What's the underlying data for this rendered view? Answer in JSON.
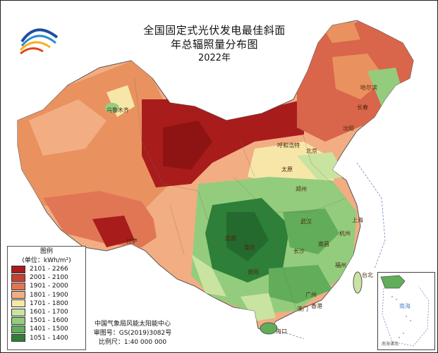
{
  "title": {
    "line1": "全国固定式光伏发电最佳斜面",
    "line2": "年总辐照量分布图",
    "year": "2022年"
  },
  "legend": {
    "title": "图例",
    "unit": "(单位：kWh/m²)",
    "items": [
      {
        "label": "2101 - 2266",
        "color": "#a91c1c"
      },
      {
        "label": "2001 - 2100",
        "color": "#c8402e"
      },
      {
        "label": "1901 - 2000",
        "color": "#e17655"
      },
      {
        "label": "1801 - 1900",
        "color": "#f3ad83"
      },
      {
        "label": "1701 - 1800",
        "color": "#f6e7a8"
      },
      {
        "label": "1601 - 1700",
        "color": "#c9e3a0"
      },
      {
        "label": "1501 - 1600",
        "color": "#94cc7d"
      },
      {
        "label": "1401 - 1500",
        "color": "#61ad5a"
      },
      {
        "label": "1051 - 1400",
        "color": "#2e7f38"
      }
    ]
  },
  "credits": {
    "org": "中国气象局风能太阳能中心",
    "review": "审图号：GS(2019)3082号",
    "scale": "比例尺：1:40 000 000"
  },
  "inset": {
    "label": "南海诸岛",
    "sea": "南海"
  },
  "cities": [
    "乌鲁木齐",
    "拉萨",
    "成都",
    "重庆",
    "贵阳",
    "哈尔滨",
    "长春",
    "沈阳",
    "北京",
    "呼和浩特",
    "太原",
    "郑州",
    "武汉",
    "长沙",
    "南昌",
    "上海",
    "杭州",
    "福州",
    "台北",
    "广州",
    "香港",
    "澳门",
    "海口"
  ],
  "colors": {
    "logo": [
      "#1d4e9e",
      "#2c8ad2",
      "#f6b21a",
      "#e2431b"
    ],
    "sea_text": "#4a86c8"
  }
}
